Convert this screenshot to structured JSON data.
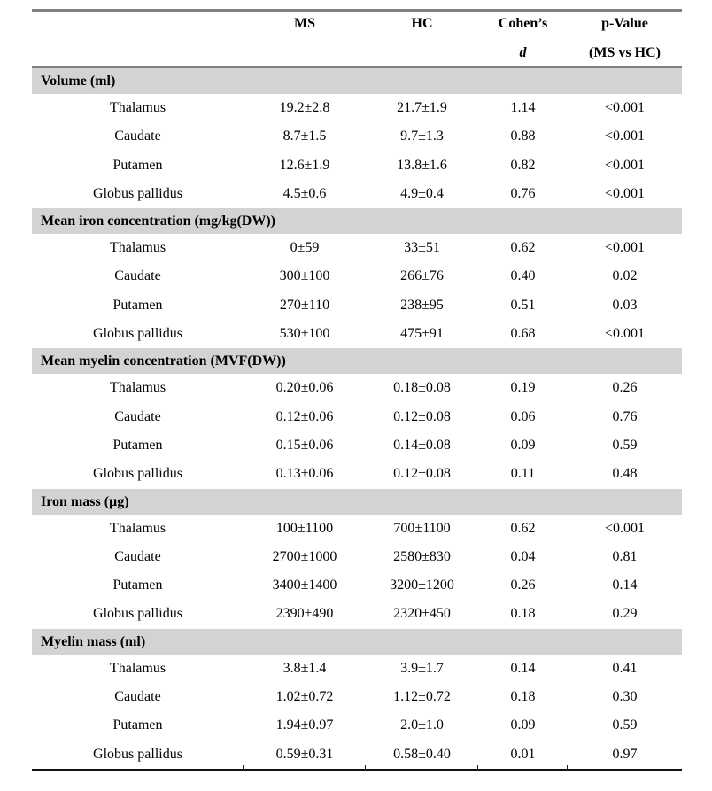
{
  "table": {
    "header": {
      "ms": "MS",
      "hc": "HC",
      "cohens_line1": "Cohen’s",
      "cohens_line2": "d",
      "pvalue_line1": "p-Value",
      "pvalue_line2": "(MS vs HC)"
    },
    "sections": [
      {
        "title": "Volume (ml)",
        "rows": [
          {
            "label": "Thalamus",
            "ms": "19.2±2.8",
            "hc": "21.7±1.9",
            "d": "1.14",
            "p": "<0.001"
          },
          {
            "label": "Caudate",
            "ms": "8.7±1.5",
            "hc": "9.7±1.3",
            "d": "0.88",
            "p": "<0.001"
          },
          {
            "label": "Putamen",
            "ms": "12.6±1.9",
            "hc": "13.8±1.6",
            "d": "0.82",
            "p": "<0.001"
          },
          {
            "label": "Globus pallidus",
            "ms": "4.5±0.6",
            "hc": "4.9±0.4",
            "d": "0.76",
            "p": "<0.001"
          }
        ]
      },
      {
        "title": "Mean iron concentration (mg/kg(DW))",
        "rows": [
          {
            "label": "Thalamus",
            "ms": "0±59",
            "hc": "33±51",
            "d": "0.62",
            "p": "<0.001"
          },
          {
            "label": "Caudate",
            "ms": "300±100",
            "hc": "266±76",
            "d": "0.40",
            "p": "0.02"
          },
          {
            "label": "Putamen",
            "ms": "270±110",
            "hc": "238±95",
            "d": "0.51",
            "p": "0.03"
          },
          {
            "label": "Globus pallidus",
            "ms": "530±100",
            "hc": "475±91",
            "d": "0.68",
            "p": "<0.001"
          }
        ]
      },
      {
        "title": "Mean myelin concentration (MVF(DW))",
        "rows": [
          {
            "label": "Thalamus",
            "ms": "0.20±0.06",
            "hc": "0.18±0.08",
            "d": "0.19",
            "p": "0.26"
          },
          {
            "label": "Caudate",
            "ms": "0.12±0.06",
            "hc": "0.12±0.08",
            "d": "0.06",
            "p": "0.76"
          },
          {
            "label": "Putamen",
            "ms": "0.15±0.06",
            "hc": "0.14±0.08",
            "d": "0.09",
            "p": "0.59"
          },
          {
            "label": "Globus pallidus",
            "ms": "0.13±0.06",
            "hc": "0.12±0.08",
            "d": "0.11",
            "p": "0.48"
          }
        ]
      },
      {
        "title": "Iron mass (µg)",
        "rows": [
          {
            "label": "Thalamus",
            "ms": "100±1100",
            "hc": "700±1100",
            "d": "0.62",
            "p": "<0.001"
          },
          {
            "label": "Caudate",
            "ms": "2700±1000",
            "hc": "2580±830",
            "d": "0.04",
            "p": "0.81"
          },
          {
            "label": "Putamen",
            "ms": "3400±1400",
            "hc": "3200±1200",
            "d": "0.26",
            "p": "0.14"
          },
          {
            "label": "Globus pallidus",
            "ms": "2390±490",
            "hc": "2320±450",
            "d": "0.18",
            "p": "0.29"
          }
        ]
      },
      {
        "title": "Myelin mass (ml)",
        "rows": [
          {
            "label": "Thalamus",
            "ms": "3.8±1.4",
            "hc": "3.9±1.7",
            "d": "0.14",
            "p": "0.41"
          },
          {
            "label": "Caudate",
            "ms": "1.02±0.72",
            "hc": "1.12±0.72",
            "d": "0.18",
            "p": "0.30"
          },
          {
            "label": "Putamen",
            "ms": "1.94±0.97",
            "hc": "2.0±1.0",
            "d": "0.09",
            "p": "0.59"
          },
          {
            "label": "Globus pallidus",
            "ms": "0.59±0.31",
            "hc": "0.58±0.40",
            "d": "0.01",
            "p": "0.97"
          }
        ]
      }
    ]
  }
}
